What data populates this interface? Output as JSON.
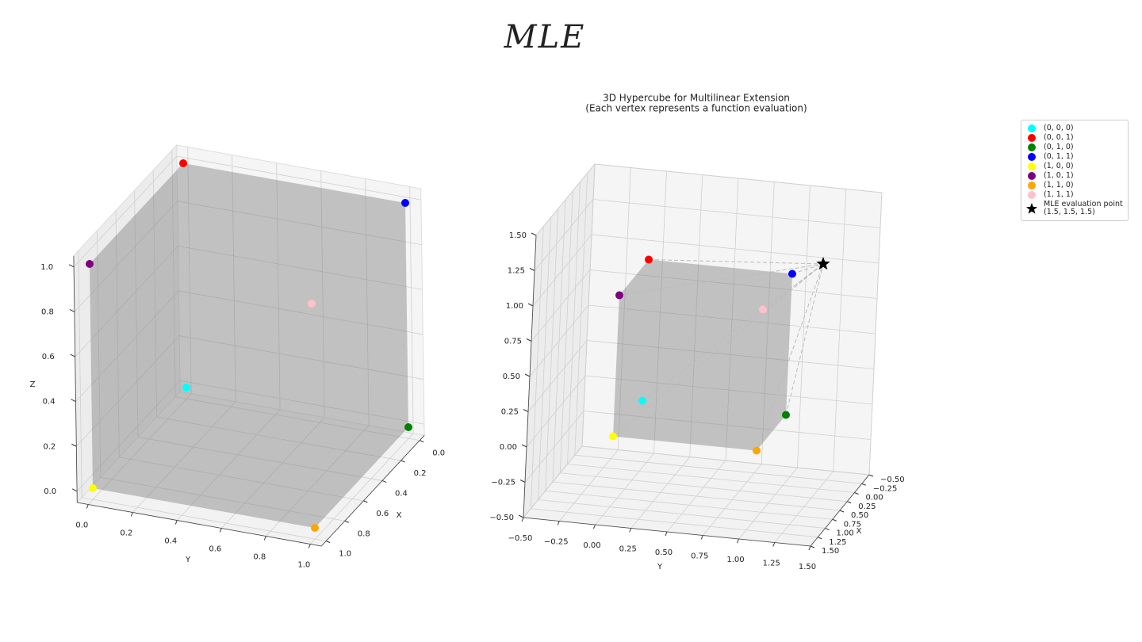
{
  "page_title": "MLE",
  "chart_data": [
    {
      "type": "scatter3d",
      "xlabel": "X",
      "ylabel": "Y",
      "zlabel": "Z",
      "xlim": [
        -0.05,
        1.05
      ],
      "ylim": [
        -0.05,
        1.05
      ],
      "zlim": [
        -0.05,
        1.05
      ],
      "xticks": [
        {
          "value": 0,
          "label": "0.0"
        },
        0.2,
        0.4,
        0.6,
        0.8,
        {
          "value": 1,
          "label": "1.0"
        }
      ],
      "yticks": [
        {
          "value": 0,
          "label": "0.0"
        },
        0.2,
        0.4,
        0.6,
        0.8,
        {
          "value": 1,
          "label": "1.0"
        }
      ],
      "zticks": [
        {
          "value": 0,
          "label": "0.0"
        },
        0.2,
        0.4,
        0.6,
        0.8,
        {
          "value": 1,
          "label": "1.0"
        }
      ],
      "series": [
        {
          "color": "cyan",
          "x": 0,
          "y": 0,
          "z": 0
        },
        {
          "color": "red",
          "x": 0,
          "y": 0,
          "z": 1
        },
        {
          "color": "green",
          "x": 0,
          "y": 1,
          "z": 0
        },
        {
          "color": "blue",
          "x": 0,
          "y": 1,
          "z": 1
        },
        {
          "color": "yellow",
          "x": 1,
          "y": 0,
          "z": 0
        },
        {
          "color": "purple",
          "x": 1,
          "y": 0,
          "z": 1
        },
        {
          "color": "orange",
          "x": 1,
          "y": 1,
          "z": 0
        },
        {
          "color": "pink",
          "x": 1,
          "y": 1,
          "z": 1
        }
      ]
    },
    {
      "type": "scatter3d",
      "title": "3D Hypercube for Multilinear Extension",
      "subtitle": "(Each vertex represents a function evaluation)",
      "xlabel": "X",
      "ylabel": "Y",
      "xlim": [
        -0.5,
        1.5
      ],
      "ylim": [
        -0.5,
        1.5
      ],
      "zlim": [
        -0.5,
        1.5
      ],
      "xticks": [
        {
          "value": -0.5,
          "label": "−0.50"
        },
        {
          "value": -0.25,
          "label": "−0.25"
        },
        {
          "value": 0,
          "label": "0.00"
        },
        0.25,
        {
          "value": 0.5,
          "label": "0.50"
        },
        0.75,
        {
          "value": 1,
          "label": "1.00"
        },
        1.25,
        {
          "value": 1.5,
          "label": "1.50"
        }
      ],
      "yticks": [
        {
          "value": -0.5,
          "label": "−0.50"
        },
        {
          "value": -0.25,
          "label": "−0.25"
        },
        {
          "value": 0,
          "label": "0.00"
        },
        0.25,
        {
          "value": 0.5,
          "label": "0.50"
        },
        0.75,
        {
          "value": 1,
          "label": "1.00"
        },
        1.25,
        {
          "value": 1.5,
          "label": "1.50"
        }
      ],
      "zticks": [
        {
          "value": -0.5,
          "label": "−0.50"
        },
        {
          "value": -0.25,
          "label": "−0.25"
        },
        {
          "value": 0,
          "label": "0.00"
        },
        0.25,
        {
          "value": 0.5,
          "label": "0.50"
        },
        0.75,
        {
          "value": 1,
          "label": "1.00"
        },
        1.25,
        {
          "value": 1.5,
          "label": "1.50"
        }
      ],
      "legend": "upper right",
      "series": [
        {
          "name": "(0, 0, 0)",
          "color": "cyan",
          "x": 0,
          "y": 0,
          "z": 0
        },
        {
          "name": "(0, 0, 1)",
          "color": "red",
          "x": 0,
          "y": 0,
          "z": 1
        },
        {
          "name": "(0, 1, 0)",
          "color": "green",
          "x": 0,
          "y": 1,
          "z": 0
        },
        {
          "name": "(0, 1, 1)",
          "color": "blue",
          "x": 0,
          "y": 1,
          "z": 1
        },
        {
          "name": "(1, 0, 0)",
          "color": "yellow",
          "x": 1,
          "y": 0,
          "z": 0
        },
        {
          "name": "(1, 0, 1)",
          "color": "purple",
          "x": 1,
          "y": 0,
          "z": 1
        },
        {
          "name": "(1, 1, 0)",
          "color": "orange",
          "x": 1,
          "y": 1,
          "z": 0
        },
        {
          "name": "(1, 1, 1)",
          "color": "pink",
          "x": 1,
          "y": 1,
          "z": 1
        },
        {
          "name": "MLE evaluation point\n(1.5, 1.5, 1.5)",
          "color": "black",
          "marker": "star",
          "x": 1.5,
          "y": 1.5,
          "z": 1.5
        }
      ]
    }
  ]
}
